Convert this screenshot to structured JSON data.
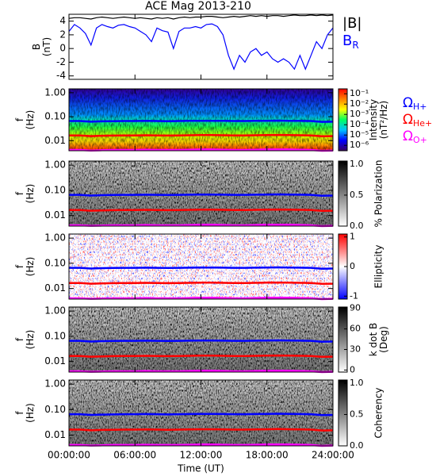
{
  "chart_data": [
    {
      "type": "line",
      "title": "ACE Mag 2013-210",
      "ylabel": [
        "B",
        "(nT)"
      ],
      "ylim": [
        -4.5,
        5
      ],
      "yticks": [
        -4,
        -2,
        0,
        2,
        4
      ],
      "x": [
        0,
        0.5,
        1,
        1.5,
        2,
        2.5,
        3,
        3.5,
        4,
        4.5,
        5,
        5.5,
        6,
        6.5,
        7,
        7.5,
        8,
        8.5,
        9,
        9.5,
        10,
        10.5,
        11,
        11.5,
        12,
        12.5,
        13,
        13.5,
        14,
        14.5,
        15,
        15.5,
        16,
        16.5,
        17,
        17.5,
        18,
        18.5,
        19,
        19.5,
        20,
        20.5,
        21,
        21.5,
        22,
        22.5,
        23,
        23.5,
        24
      ],
      "series": [
        {
          "name": "|B|",
          "color": "#000000",
          "values": [
            4.4,
            4.5,
            4.5,
            4.4,
            4.3,
            4.5,
            4.6,
            4.5,
            4.4,
            4.5,
            4.6,
            4.5,
            4.4,
            4.5,
            4.4,
            4.3,
            4.5,
            4.4,
            4.5,
            4.3,
            4.5,
            4.6,
            4.5,
            4.6,
            4.6,
            4.7,
            4.7,
            4.6,
            4.5,
            4.6,
            4.7,
            4.6,
            4.7,
            4.8,
            4.7,
            4.8,
            4.7,
            4.8,
            4.8,
            4.7,
            4.8,
            4.9,
            4.8,
            4.8,
            4.9,
            4.8,
            4.9,
            4.8,
            4.9
          ]
        },
        {
          "name": "B",
          "sub": "R",
          "color": "#0000ff",
          "values": [
            2.5,
            3.5,
            3,
            2.2,
            0.5,
            3,
            3.5,
            3.2,
            3,
            3.4,
            3.5,
            3.2,
            3,
            2.5,
            2,
            1,
            3,
            2.6,
            2.4,
            0,
            2.5,
            3,
            3,
            3.2,
            3,
            3.5,
            3.6,
            3.2,
            2,
            -1,
            -3,
            -1,
            -2,
            -0.5,
            0,
            -1,
            -0.5,
            -1.5,
            -2,
            -1.5,
            -2,
            -3,
            -1,
            -3,
            -1,
            1,
            0,
            2,
            3
          ]
        }
      ]
    },
    {
      "type": "spectrogram",
      "ylabel": [
        "f",
        "(Hz)"
      ],
      "log": true,
      "ylim": [
        0.0038,
        1.45
      ],
      "yticks": [
        {
          "value": 1,
          "label": "1.00"
        },
        {
          "value": 0.1,
          "label": "0.10"
        },
        {
          "value": 0.01,
          "label": "0.01"
        }
      ],
      "colorbar": {
        "label": [
          "Intensity",
          "(nT²/Hz)"
        ],
        "log": true,
        "zlim": [
          3e-07,
          0.3
        ],
        "zticks": [
          {
            "value": 0.1,
            "label": "10⁻¹"
          },
          {
            "value": 0.01,
            "label": "10⁻²"
          },
          {
            "value": 0.001,
            "label": "10⁻³"
          },
          {
            "value": 0.0001,
            "label": "10⁻⁴"
          },
          {
            "value": 1e-05,
            "label": "10⁻⁵"
          },
          {
            "value": 1e-06,
            "label": "10⁻⁶"
          }
        ],
        "colors": [
          "#3a0060",
          "#0000ff",
          "#00c0ff",
          "#00ff60",
          "#ffff00",
          "#ff8000",
          "#ff0000"
        ]
      },
      "x": [
        0,
        1,
        2,
        3,
        4,
        5,
        6,
        7,
        8,
        9,
        10,
        11,
        12,
        13,
        14,
        15,
        16,
        17,
        18,
        19,
        20,
        21,
        22,
        23,
        24
      ],
      "series": [
        {
          "name": "Ω",
          "sub": "H+",
          "color": "#0000ff",
          "values": [
            0.066,
            0.066,
            0.062,
            0.064,
            0.065,
            0.066,
            0.066,
            0.067,
            0.066,
            0.065,
            0.066,
            0.067,
            0.068,
            0.068,
            0.067,
            0.066,
            0.066,
            0.067,
            0.068,
            0.069,
            0.068,
            0.067,
            0.066,
            0.061,
            0.062
          ]
        },
        {
          "name": "Ω",
          "sub": "He+",
          "color": "#ff0000",
          "values": [
            0.0165,
            0.0165,
            0.0155,
            0.016,
            0.0163,
            0.0165,
            0.0165,
            0.0168,
            0.0165,
            0.0163,
            0.0165,
            0.0168,
            0.017,
            0.017,
            0.0168,
            0.0165,
            0.0165,
            0.0168,
            0.017,
            0.0173,
            0.017,
            0.0168,
            0.0165,
            0.0153,
            0.0155
          ]
        },
        {
          "name": "Ω",
          "sub": "O+",
          "color": "#ff00ff",
          "values": [
            0.0041,
            0.0041,
            0.0039,
            0.004,
            0.0041,
            0.0041,
            0.0041,
            0.0042,
            0.0041,
            0.0041,
            0.0041,
            0.0042,
            0.0043,
            0.0043,
            0.0042,
            0.0041,
            0.0041,
            0.0042,
            0.0043,
            0.0043,
            0.0043,
            0.0042,
            0.0041,
            0.0038,
            0.0039
          ]
        }
      ]
    },
    {
      "type": "spectrogram",
      "ylabel": [
        "f",
        "(Hz)"
      ],
      "log": true,
      "ylim": [
        0.0038,
        1.45
      ],
      "yticks": [
        {
          "value": 1,
          "label": "1.00"
        },
        {
          "value": 0.1,
          "label": "0.10"
        },
        {
          "value": 0.01,
          "label": "0.01"
        }
      ],
      "colorbar": {
        "label": [
          "% Polarization"
        ],
        "zlim": [
          0,
          1.05
        ],
        "zticks": [
          {
            "value": 0,
            "label": "0.0"
          },
          {
            "value": 0.5,
            "label": "0.5"
          },
          {
            "value": 1,
            "label": "1.0"
          }
        ],
        "colors": [
          "#ffffff",
          "#000000"
        ]
      },
      "x": [
        0,
        1,
        2,
        3,
        4,
        5,
        6,
        7,
        8,
        9,
        10,
        11,
        12,
        13,
        14,
        15,
        16,
        17,
        18,
        19,
        20,
        21,
        22,
        23,
        24
      ],
      "series": [
        {
          "color": "#0000ff",
          "values": [
            0.066,
            0.066,
            0.062,
            0.064,
            0.065,
            0.066,
            0.066,
            0.067,
            0.066,
            0.065,
            0.066,
            0.067,
            0.068,
            0.068,
            0.067,
            0.066,
            0.066,
            0.067,
            0.068,
            0.069,
            0.068,
            0.067,
            0.066,
            0.061,
            0.062
          ]
        },
        {
          "color": "#ff0000",
          "values": [
            0.0165,
            0.0165,
            0.0155,
            0.016,
            0.0163,
            0.0165,
            0.0165,
            0.0168,
            0.0165,
            0.0163,
            0.0165,
            0.0168,
            0.017,
            0.017,
            0.0168,
            0.0165,
            0.0165,
            0.0168,
            0.017,
            0.0173,
            0.017,
            0.0168,
            0.0165,
            0.0153,
            0.0155
          ]
        },
        {
          "color": "#ff00ff",
          "values": [
            0.0041,
            0.0041,
            0.0039,
            0.004,
            0.0041,
            0.0041,
            0.0041,
            0.0042,
            0.0041,
            0.0041,
            0.0041,
            0.0042,
            0.0043,
            0.0043,
            0.0042,
            0.0041,
            0.0041,
            0.0042,
            0.0043,
            0.0043,
            0.0043,
            0.0042,
            0.0041,
            0.0038,
            0.0039
          ]
        }
      ]
    },
    {
      "type": "spectrogram",
      "ylabel": [
        "f",
        "(Hz)"
      ],
      "log": true,
      "ylim": [
        0.0038,
        1.45
      ],
      "yticks": [
        {
          "value": 1,
          "label": "1.00"
        },
        {
          "value": 0.1,
          "label": "0.10"
        },
        {
          "value": 0.01,
          "label": "0.01"
        }
      ],
      "colorbar": {
        "label": [
          "Ellipticity"
        ],
        "zlim": [
          -1.1,
          1.1
        ],
        "zticks": [
          -1,
          0,
          1
        ],
        "colors": [
          "#0000ff",
          "#ffffff",
          "#ff0000"
        ]
      },
      "x": [
        0,
        1,
        2,
        3,
        4,
        5,
        6,
        7,
        8,
        9,
        10,
        11,
        12,
        13,
        14,
        15,
        16,
        17,
        18,
        19,
        20,
        21,
        22,
        23,
        24
      ],
      "series": [
        {
          "color": "#0000ff",
          "values": [
            0.066,
            0.066,
            0.062,
            0.064,
            0.065,
            0.066,
            0.066,
            0.067,
            0.066,
            0.065,
            0.066,
            0.067,
            0.068,
            0.068,
            0.067,
            0.066,
            0.066,
            0.067,
            0.068,
            0.069,
            0.068,
            0.067,
            0.066,
            0.061,
            0.062
          ]
        },
        {
          "color": "#ff0000",
          "values": [
            0.0165,
            0.0165,
            0.0155,
            0.016,
            0.0163,
            0.0165,
            0.0165,
            0.0168,
            0.0165,
            0.0163,
            0.0165,
            0.0168,
            0.017,
            0.017,
            0.0168,
            0.0165,
            0.0165,
            0.0168,
            0.017,
            0.0173,
            0.017,
            0.0168,
            0.0165,
            0.0153,
            0.0155
          ]
        },
        {
          "color": "#ff00ff",
          "values": [
            0.0041,
            0.0041,
            0.0039,
            0.004,
            0.0041,
            0.0041,
            0.0041,
            0.0042,
            0.0041,
            0.0041,
            0.0041,
            0.0042,
            0.0043,
            0.0043,
            0.0042,
            0.0041,
            0.0041,
            0.0042,
            0.0043,
            0.0043,
            0.0043,
            0.0042,
            0.0041,
            0.0038,
            0.0039
          ]
        }
      ]
    },
    {
      "type": "spectrogram",
      "ylabel": [
        "f",
        "(Hz)"
      ],
      "log": true,
      "ylim": [
        0.0038,
        1.45
      ],
      "yticks": [
        {
          "value": 1,
          "label": "1.00"
        },
        {
          "value": 0.1,
          "label": "0.10"
        },
        {
          "value": 0.01,
          "label": "0.01"
        }
      ],
      "colorbar": {
        "label": [
          "k dot B",
          "(Deg)"
        ],
        "zlim": [
          -3,
          92
        ],
        "zticks": [
          0,
          30,
          60,
          90
        ],
        "colors": [
          "#ffffff",
          "#000000"
        ]
      },
      "x": [
        0,
        1,
        2,
        3,
        4,
        5,
        6,
        7,
        8,
        9,
        10,
        11,
        12,
        13,
        14,
        15,
        16,
        17,
        18,
        19,
        20,
        21,
        22,
        23,
        24
      ],
      "series": [
        {
          "color": "#0000ff",
          "values": [
            0.066,
            0.066,
            0.062,
            0.064,
            0.065,
            0.066,
            0.066,
            0.067,
            0.066,
            0.065,
            0.066,
            0.067,
            0.068,
            0.068,
            0.067,
            0.066,
            0.066,
            0.067,
            0.068,
            0.069,
            0.068,
            0.067,
            0.066,
            0.061,
            0.062
          ]
        },
        {
          "color": "#ff0000",
          "values": [
            0.0165,
            0.0165,
            0.0155,
            0.016,
            0.0163,
            0.0165,
            0.0165,
            0.0168,
            0.0165,
            0.0163,
            0.0165,
            0.0168,
            0.017,
            0.017,
            0.0168,
            0.0165,
            0.0165,
            0.0168,
            0.017,
            0.0173,
            0.017,
            0.0168,
            0.0165,
            0.0153,
            0.0155
          ]
        },
        {
          "color": "#ff00ff",
          "values": [
            0.0041,
            0.0041,
            0.0039,
            0.004,
            0.0041,
            0.0041,
            0.0041,
            0.0042,
            0.0041,
            0.0041,
            0.0041,
            0.0042,
            0.0043,
            0.0043,
            0.0042,
            0.0041,
            0.0041,
            0.0042,
            0.0043,
            0.0043,
            0.0043,
            0.0042,
            0.0041,
            0.0038,
            0.0039
          ]
        }
      ]
    },
    {
      "type": "spectrogram",
      "ylabel": [
        "f",
        "(Hz)"
      ],
      "log": true,
      "ylim": [
        0.0038,
        1.45
      ],
      "yticks": [
        {
          "value": 1,
          "label": "1.00"
        },
        {
          "value": 0.1,
          "label": "0.10"
        },
        {
          "value": 0.01,
          "label": "0.01"
        }
      ],
      "colorbar": {
        "label": [
          "Coherency"
        ],
        "zlim": [
          0,
          1.05
        ],
        "zticks": [
          {
            "value": 0,
            "label": "0.0"
          },
          {
            "value": 0.5,
            "label": "0.5"
          },
          {
            "value": 1,
            "label": "1.0"
          }
        ],
        "colors": [
          "#ffffff",
          "#000000"
        ]
      },
      "xlabel": "Time (UT)",
      "xlim": [
        0,
        24
      ],
      "xticks": [
        {
          "value": 0,
          "label": "00:00:00"
        },
        {
          "value": 6,
          "label": "06:00:00"
        },
        {
          "value": 12,
          "label": "12:00:00"
        },
        {
          "value": 18,
          "label": "18:00:00"
        },
        {
          "value": 24,
          "label": "24:00:00"
        }
      ],
      "x": [
        0,
        1,
        2,
        3,
        4,
        5,
        6,
        7,
        8,
        9,
        10,
        11,
        12,
        13,
        14,
        15,
        16,
        17,
        18,
        19,
        20,
        21,
        22,
        23,
        24
      ],
      "series": [
        {
          "color": "#0000ff",
          "values": [
            0.066,
            0.066,
            0.062,
            0.064,
            0.065,
            0.066,
            0.066,
            0.067,
            0.066,
            0.065,
            0.066,
            0.067,
            0.068,
            0.068,
            0.067,
            0.066,
            0.066,
            0.067,
            0.068,
            0.069,
            0.068,
            0.067,
            0.066,
            0.061,
            0.062
          ]
        },
        {
          "color": "#ff0000",
          "values": [
            0.0165,
            0.0165,
            0.0155,
            0.016,
            0.0163,
            0.0165,
            0.0165,
            0.0168,
            0.0165,
            0.0163,
            0.0165,
            0.0168,
            0.017,
            0.017,
            0.0168,
            0.0165,
            0.0165,
            0.0168,
            0.017,
            0.0173,
            0.017,
            0.0168,
            0.0165,
            0.0153,
            0.0155
          ]
        },
        {
          "color": "#ff00ff",
          "values": [
            0.0041,
            0.0041,
            0.0039,
            0.004,
            0.0041,
            0.0041,
            0.0041,
            0.0042,
            0.0041,
            0.0041,
            0.0041,
            0.0042,
            0.0043,
            0.0043,
            0.0042,
            0.0041,
            0.0041,
            0.0042,
            0.0043,
            0.0043,
            0.0043,
            0.0042,
            0.0041,
            0.0038,
            0.0039
          ]
        }
      ]
    }
  ]
}
